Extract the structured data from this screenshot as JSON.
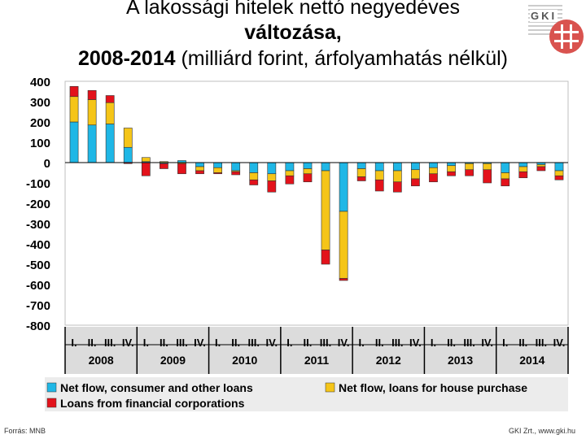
{
  "title": {
    "line1": "A lakossági hitelek nettó negyedéves",
    "line2": "változása,",
    "line3_bold": "2008-2014",
    "line3_rest": " (milliárd forint, árfolyamhatás nélkül)"
  },
  "logo_text": "GKI",
  "source_left": "Forrás: MNB",
  "source_right": "GKI Zrt., www.gki.hu",
  "colors": {
    "consumer": "#1fb7e6",
    "house": "#f5c518",
    "financial": "#e3121b",
    "panel": "#dcdcdc"
  },
  "chart_data": {
    "type": "bar",
    "stacked": true,
    "ylim": [
      -800,
      400
    ],
    "yticks": [
      400,
      300,
      200,
      100,
      0,
      -100,
      -200,
      -300,
      -400,
      -500,
      -600,
      -700,
      -800
    ],
    "quarter_labels": [
      "I.",
      "II.",
      "III.",
      "IV."
    ],
    "years": [
      "2008",
      "2009",
      "2010",
      "2011",
      "2012",
      "2013",
      "2014"
    ],
    "series": [
      {
        "name": "Net flow, consumer and other loans",
        "color": "#1fb7e6",
        "values": [
          200,
          185,
          190,
          75,
          5,
          -5,
          10,
          -20,
          -25,
          -40,
          -50,
          -55,
          -40,
          -30,
          -40,
          -240,
          -30,
          -40,
          -40,
          -35,
          -25,
          -15,
          -5,
          -5,
          -50,
          -20,
          -10,
          -40
        ]
      },
      {
        "name": "Net flow, loans for house purchase",
        "color": "#f5c518",
        "values": [
          125,
          125,
          105,
          95,
          20,
          5,
          -5,
          -20,
          -25,
          -5,
          -35,
          -35,
          -25,
          -25,
          -390,
          -330,
          -40,
          -45,
          -55,
          -45,
          -30,
          -30,
          -30,
          -30,
          -30,
          -25,
          -10,
          -25
        ]
      },
      {
        "name": "Loans from financial corporations",
        "color": "#e3121b",
        "values": [
          50,
          45,
          35,
          -5,
          -65,
          -25,
          -50,
          -15,
          -5,
          -15,
          -25,
          -55,
          -40,
          -40,
          -70,
          -10,
          -20,
          -55,
          -50,
          -35,
          -40,
          -20,
          -30,
          -65,
          -35,
          -30,
          -20,
          -20
        ]
      }
    ]
  }
}
